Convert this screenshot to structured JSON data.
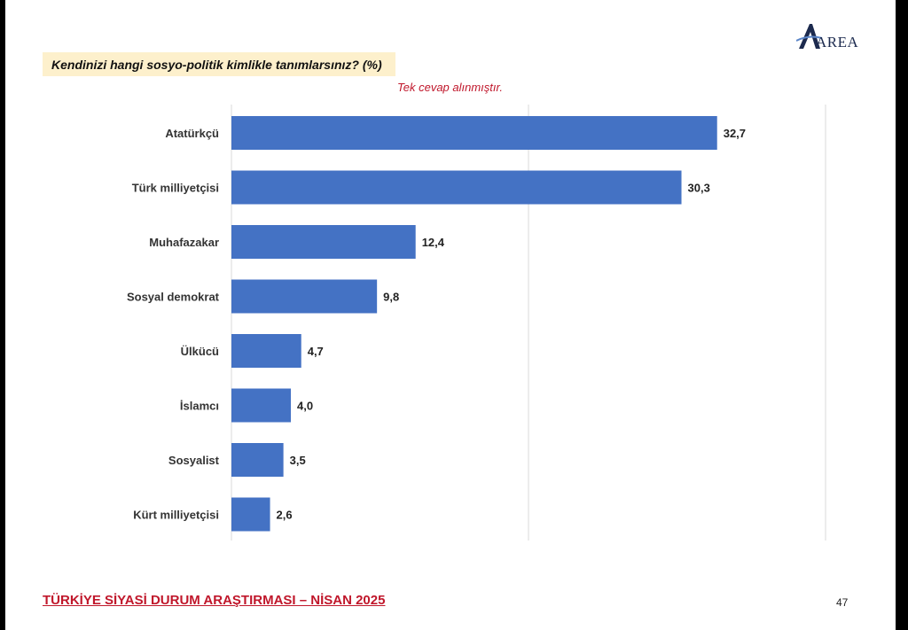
{
  "header": {
    "question": "Kendinizi hangi sosyo-politik kimlikle tanımlarsınız? (%)",
    "note": "Tek cevap alınmıştır.",
    "logo_text": "AREA"
  },
  "footer": {
    "title": "TÜRKİYE SİYASİ DURUM ARAŞTIRMASI – NİSAN 2025",
    "page_number": "47"
  },
  "colors": {
    "bar": "#4472c4",
    "accent_red": "#c0172b",
    "question_bg": "#fdf0cc",
    "grid": "#d9d9d9"
  },
  "chart_data": {
    "type": "bar",
    "orientation": "horizontal",
    "categories": [
      "Atatürkçü",
      "Türk milliyetçisi",
      "Muhafazakar",
      "Sosyal demokrat",
      "Ülkücü",
      "İslamcı",
      "Sosyalist",
      "Kürt milliyetçisi"
    ],
    "values": [
      32.7,
      30.3,
      12.4,
      9.8,
      4.7,
      4.0,
      3.5,
      2.6
    ],
    "value_labels": [
      "32,7",
      "30,3",
      "12,4",
      "9,8",
      "4,7",
      "4,0",
      "3,5",
      "2,6"
    ],
    "xlim": [
      0,
      40
    ],
    "grid": true,
    "title": "",
    "xlabel": "",
    "ylabel": ""
  }
}
